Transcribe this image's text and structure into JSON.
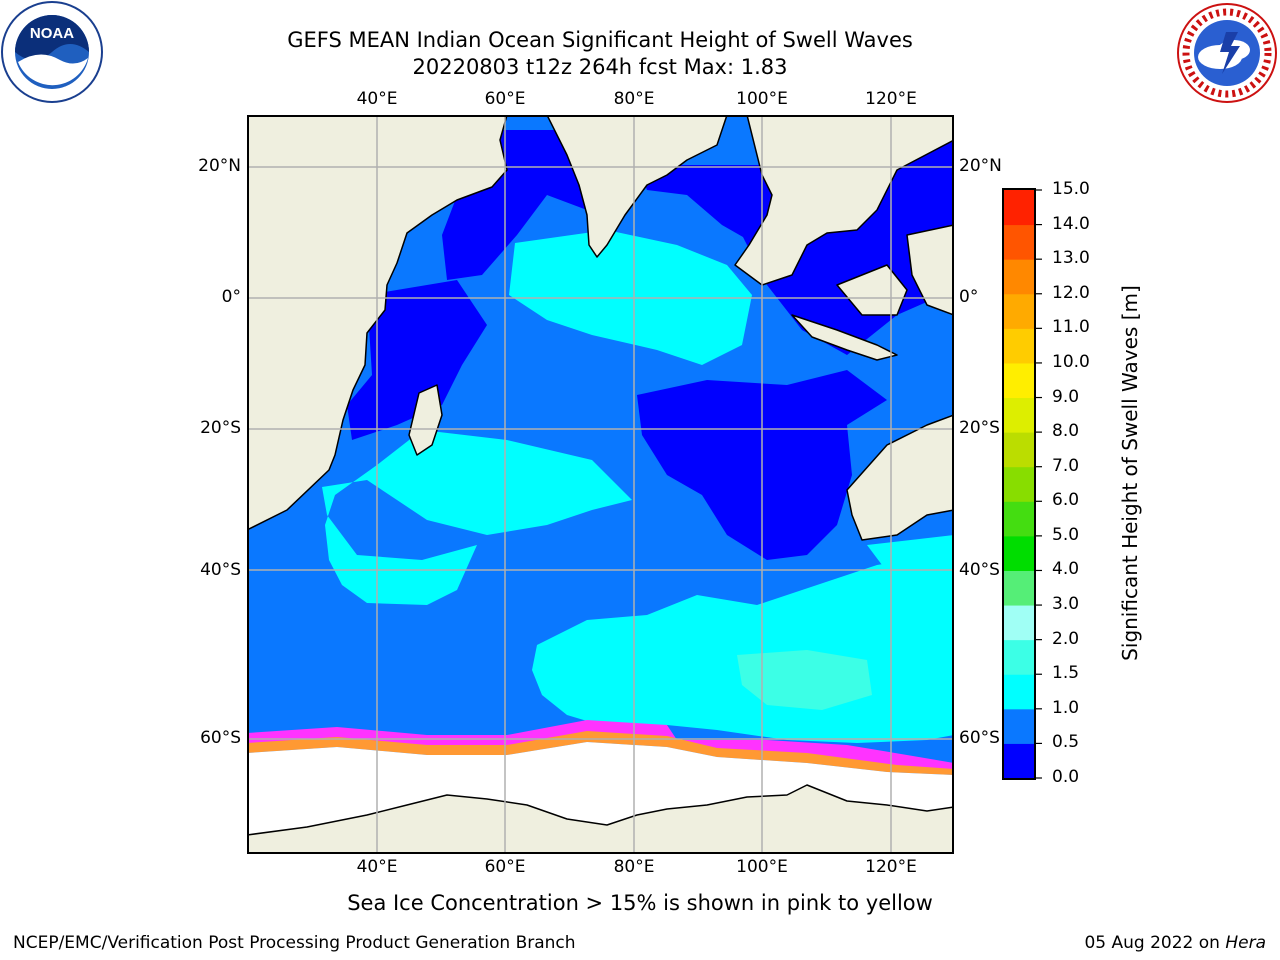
{
  "header": {
    "title_line1": "GEFS MEAN Indian Ocean Significant Height of Swell Waves",
    "title_line2": "20220803 t12z 264h fcst   Max: 1.83"
  },
  "logos": {
    "left": {
      "icon": "noaa-logo",
      "text": "NOAA"
    },
    "right": {
      "icon": "nws-logo",
      "text": "NATIONAL WEATHER SERVICE"
    }
  },
  "map": {
    "lon_ticks": [
      "40°E",
      "60°E",
      "80°E",
      "100°E",
      "120°E"
    ],
    "lat_ticks": [
      "20°N",
      "0°",
      "20°S",
      "40°S",
      "60°S"
    ],
    "extent": {
      "lon_min": 20,
      "lon_max": 129,
      "lat_max": 27,
      "lat_min": -76
    },
    "gridlines": true
  },
  "colorbar": {
    "label": "Significant Height of Swell Waves [m]",
    "ticks": [
      "0.0",
      "0.5",
      "1.0",
      "1.5",
      "2.0",
      "3.0",
      "4.0",
      "5.0",
      "6.0",
      "7.0",
      "8.0",
      "9.0",
      "10.0",
      "11.0",
      "12.0",
      "13.0",
      "14.0",
      "15.0"
    ],
    "colors": [
      "#0000ff",
      "#0a78ff",
      "#00ffff",
      "#3cffe6",
      "#a0fff5",
      "#55ee77",
      "#00dd00",
      "#44dd11",
      "#88dd00",
      "#bbdd00",
      "#ddee00",
      "#ffee00",
      "#ffcc00",
      "#ffaa00",
      "#ff8800",
      "#ff5500",
      "#ff2200"
    ]
  },
  "caption": "Sea Ice Concentration > 15% is shown in pink to yellow",
  "footer": {
    "left": "NCEP/EMC/Verification Post Processing Product Generation Branch",
    "right_date": "05 Aug 2022 on ",
    "right_host": "Hera"
  }
}
